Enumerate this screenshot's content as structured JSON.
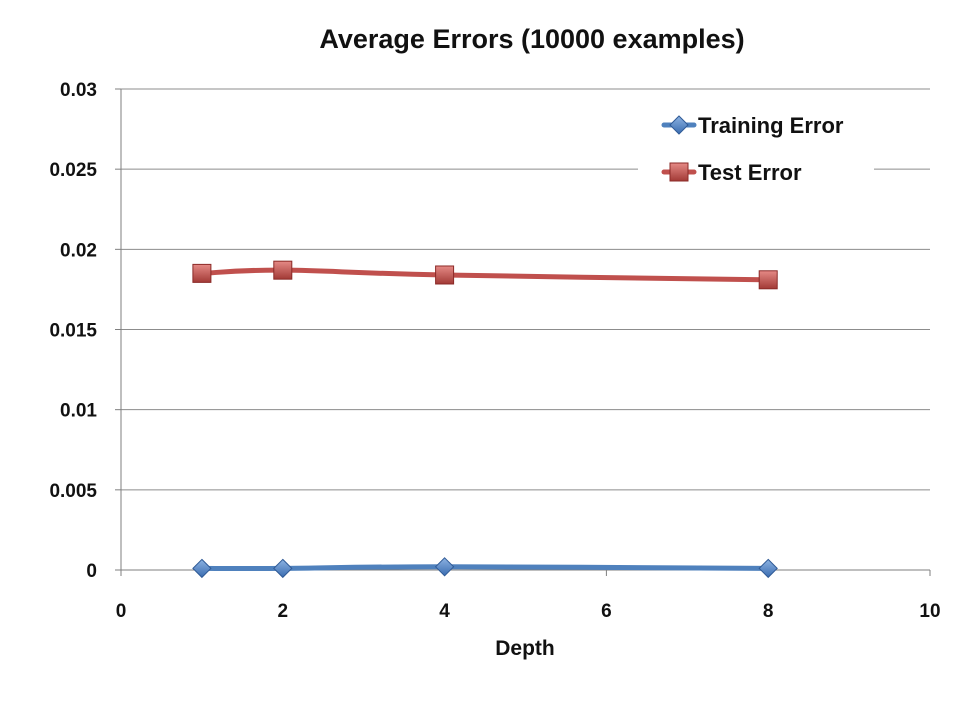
{
  "chart_data": {
    "type": "line",
    "title": "Average Errors (10000 examples)",
    "xlabel": "Depth",
    "ylabel": "",
    "xlim": [
      0,
      10
    ],
    "ylim": [
      0,
      0.03
    ],
    "x_ticks": [
      "0",
      "2",
      "4",
      "6",
      "8",
      "10"
    ],
    "y_ticks": [
      "0",
      "0.005",
      "0.01",
      "0.015",
      "0.02",
      "0.025",
      "0.03"
    ],
    "grid": true,
    "legend_position": "top-right",
    "x": [
      1,
      2,
      4,
      8
    ],
    "series": [
      {
        "name": "Training Error",
        "values": [
          0.0001,
          0.0001,
          0.0002,
          0.0001
        ],
        "color": "#4F81BD",
        "marker": "diamond"
      },
      {
        "name": "Test Error",
        "values": [
          0.0185,
          0.0187,
          0.0184,
          0.0181
        ],
        "color": "#C0504D",
        "marker": "square"
      }
    ]
  }
}
